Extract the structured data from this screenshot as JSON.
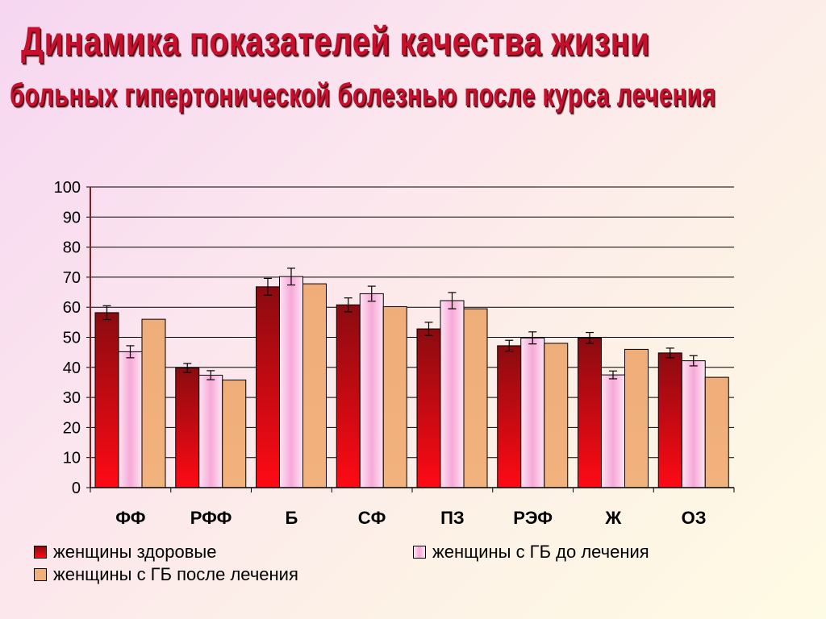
{
  "slide": {
    "title_line1": "Динамика показателей качества жизни",
    "title_line2": "больных гипертонической болезнью после курса лечения"
  },
  "chart_data": {
    "type": "bar",
    "categories": [
      "ФФ",
      "РФФ",
      "Б",
      "СФ",
      "ПЗ",
      "РЭФ",
      "Ж",
      "ОЗ"
    ],
    "series": [
      {
        "name": "женщины здоровые",
        "values": [
          58.2,
          39.8,
          66.8,
          60.8,
          52.8,
          47.2,
          49.8,
          44.8
        ],
        "error": [
          2.3,
          1.5,
          2.8,
          2.3,
          2.2,
          1.8,
          1.8,
          1.6
        ],
        "color": "#a50d12"
      },
      {
        "name": "женщины с ГБ до лечения",
        "values": [
          45.2,
          37.4,
          70.2,
          64.5,
          62.2,
          49.8,
          37.5,
          42.2
        ],
        "error": [
          2.0,
          1.5,
          2.8,
          2.5,
          2.7,
          2.0,
          1.3,
          1.7
        ],
        "color": "#f7a6d6"
      },
      {
        "name": "женщины с ГБ после лечения",
        "values": [
          56.0,
          35.8,
          67.8,
          60.2,
          59.5,
          48.0,
          46.0,
          36.7
        ],
        "color": "#f1b07b"
      }
    ],
    "ylim": [
      0,
      100
    ],
    "yticks": [
      0,
      10,
      20,
      30,
      40,
      50,
      60,
      70,
      80,
      90,
      100
    ],
    "grid": true,
    "legend_position": "bottom"
  }
}
